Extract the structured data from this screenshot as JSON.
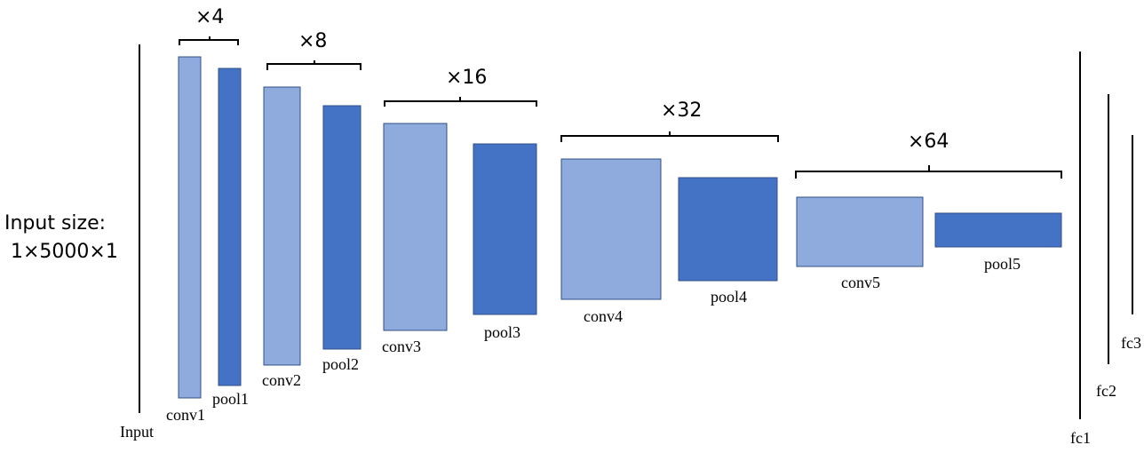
{
  "input": {
    "size_label_line1": "Input size:",
    "size_label_line2": "1×5000×1",
    "label": "Input"
  },
  "layers": [
    {
      "name": "conv1",
      "kind": "conv"
    },
    {
      "name": "pool1",
      "kind": "pool"
    },
    {
      "name": "conv2",
      "kind": "conv"
    },
    {
      "name": "pool2",
      "kind": "pool"
    },
    {
      "name": "conv3",
      "kind": "conv"
    },
    {
      "name": "pool3",
      "kind": "pool"
    },
    {
      "name": "conv4",
      "kind": "conv"
    },
    {
      "name": "pool4",
      "kind": "pool"
    },
    {
      "name": "conv5",
      "kind": "conv"
    },
    {
      "name": "pool5",
      "kind": "pool"
    }
  ],
  "multipliers": [
    "×4",
    "×8",
    "×16",
    "×32",
    "×64"
  ],
  "fc_layers": [
    "fc1",
    "fc2",
    "fc3"
  ],
  "colors": {
    "conv_fill": "#8faadc",
    "pool_fill": "#4472c4",
    "stroke": "#2f4f8a",
    "text": "#000000"
  }
}
